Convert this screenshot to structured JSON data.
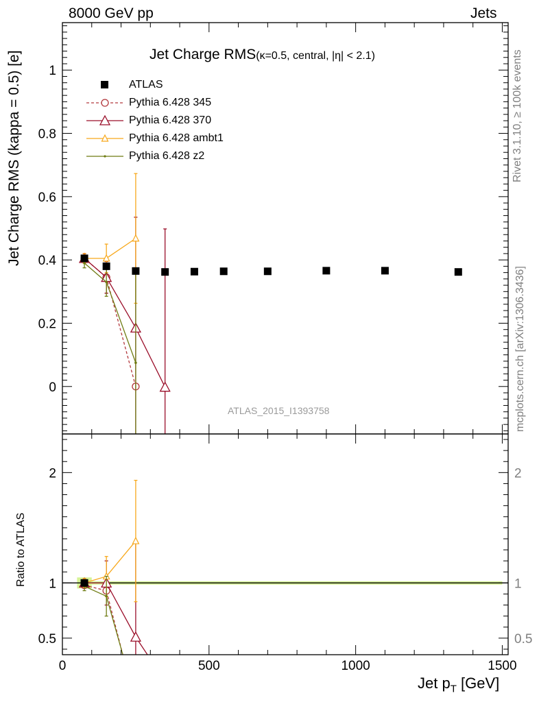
{
  "header": {
    "left_label": "8000 GeV pp",
    "right_label": "Jets"
  },
  "title": {
    "main": "Jet Charge RMS",
    "sub": "(κ=0.5, central, |η| < 2.1)"
  },
  "side_labels": {
    "rivet": "Rivet 3.1.10, ≥ 100k events",
    "mcplots": "mcplots.cern.ch [arXiv:1306.3436]"
  },
  "watermark": "ATLAS_2015_I1393758",
  "axes": {
    "ylabel_main": "Jet Charge RMS (kappa = 0.5) [e]",
    "ylabel_ratio": "Ratio to ATLAS",
    "xlabel_main": "Jet p",
    "xlabel_sub": "T",
    "xlabel_unit": " [GeV]"
  },
  "legend": [
    {
      "name": "ATLAS",
      "color": "#000000",
      "marker": "square"
    },
    {
      "name": "Pythia 6.428 345",
      "color": "#b2373c",
      "marker": "circle",
      "dashed": true
    },
    {
      "name": "Pythia 6.428 370",
      "color": "#9a0e29",
      "marker": "triangle"
    },
    {
      "name": "Pythia 6.428 ambt1",
      "color": "#f7a81b",
      "marker": "triangle-small"
    },
    {
      "name": "Pythia 6.428 z2",
      "color": "#6e7b12",
      "marker": "dot"
    }
  ],
  "chart_data": [
    {
      "type": "scatter",
      "panel": "main",
      "xlim": [
        0,
        1520
      ],
      "ylim": [
        -0.15,
        1.15
      ],
      "xticks": [
        0,
        500,
        1000,
        1500
      ],
      "yticks": [
        0,
        0.2,
        0.4,
        0.6,
        0.8,
        1
      ],
      "ytick_labels": [
        "0",
        "0.2",
        "0.4",
        "0.6",
        "0.8",
        "1"
      ],
      "series": [
        {
          "name": "ATLAS",
          "x": [
            75,
            150,
            250,
            350,
            450,
            550,
            700,
            900,
            1100,
            1350
          ],
          "y": [
            0.405,
            0.38,
            0.365,
            0.362,
            0.363,
            0.364,
            0.364,
            0.366,
            0.366,
            0.362
          ]
        },
        {
          "name": "Pythia 6.428 345",
          "x": [
            75,
            150,
            250
          ],
          "y": [
            0.405,
            0.345,
            0.0
          ],
          "yerr": [
            0.015,
            0.05,
            0.0
          ]
        },
        {
          "name": "Pythia 6.428 370",
          "x": [
            75,
            150,
            250,
            350
          ],
          "y": [
            0.405,
            0.345,
            0.185,
            -0.002
          ],
          "yerr": [
            0.015,
            0.05,
            0.35,
            0.5
          ]
        },
        {
          "name": "Pythia 6.428 ambt1",
          "x": [
            75,
            150,
            250
          ],
          "y": [
            0.405,
            0.405,
            0.468
          ],
          "yerr": [
            0.015,
            0.045,
            0.205
          ]
        },
        {
          "name": "Pythia 6.428 z2",
          "x": [
            75,
            150,
            250
          ],
          "y": [
            0.39,
            0.33,
            0.075
          ],
          "yerr": [
            0.015,
            0.045,
            0.3
          ]
        }
      ]
    },
    {
      "type": "line",
      "panel": "ratio",
      "xlim": [
        0,
        1520
      ],
      "ylim": [
        0.35,
        2.35
      ],
      "xticks": [
        0,
        500,
        1000,
        1500
      ],
      "xtick_labels": [
        "0",
        "500",
        "1000",
        "1500"
      ],
      "yticks": [
        0.5,
        1,
        2
      ],
      "ytick_labels": [
        "0.5",
        "1",
        "2"
      ],
      "series": [
        {
          "name": "Pythia 6.428 345",
          "x": [
            75,
            150,
            206
          ],
          "y": [
            0.98,
            0.93,
            0.35
          ]
        },
        {
          "name": "Pythia 6.428 370",
          "x": [
            75,
            150,
            250,
            290
          ],
          "y": [
            1.0,
            1.0,
            0.51,
            0.35
          ],
          "yerr": [
            0.04,
            0.2,
            0.85,
            0
          ]
        },
        {
          "name": "Pythia 6.428 ambt1",
          "x": [
            75,
            150,
            250
          ],
          "y": [
            1.0,
            1.06,
            1.38
          ],
          "yerr": [
            0.04,
            0.18,
            0.55
          ]
        },
        {
          "name": "Pythia 6.428 z2",
          "x": [
            75,
            150,
            206
          ],
          "y": [
            0.97,
            0.88,
            0.35
          ],
          "yerr": [
            0.04,
            0.18,
            0
          ]
        }
      ],
      "reference_line": 1,
      "band": [
        {
          "x0": 50,
          "x1": 100,
          "lo": 0.95,
          "hi": 1.05
        },
        {
          "x0": 100,
          "x1": 1500,
          "lo": 0.985,
          "hi": 1.015
        }
      ]
    }
  ]
}
